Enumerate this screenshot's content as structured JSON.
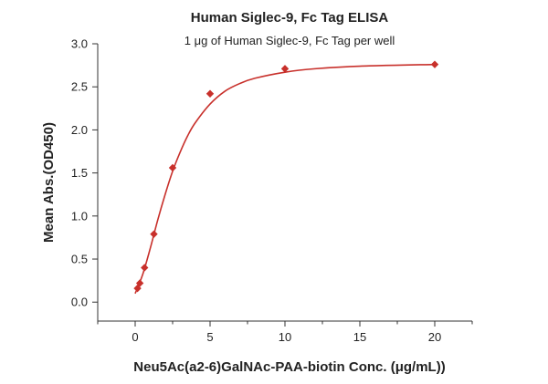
{
  "chart_data": {
    "type": "scatter",
    "title": "Human Siglec-9, Fc Tag ELISA",
    "subtitle": "1 μg of Human Siglec-9, Fc Tag per well",
    "xlabel": "Neu5Ac(a2-6)GalNAc-PAA-biotin Conc. (μg/mL))",
    "ylabel": "Mean Abs.(OD450)",
    "xlim": [
      -2.5,
      22.5
    ],
    "ylim": [
      -0.22,
      3.0
    ],
    "xticks": [
      "0",
      "5",
      "10",
      "15",
      "20"
    ],
    "xtick_values": [
      0,
      5,
      10,
      15,
      20
    ],
    "yticks": [
      "0.0",
      "0.5",
      "1.0",
      "1.5",
      "2.0",
      "2.5",
      "3.0"
    ],
    "ytick_values": [
      0.0,
      0.5,
      1.0,
      1.5,
      2.0,
      2.5,
      3.0
    ],
    "grid": false,
    "series": [
      {
        "marker": "diamond",
        "color": "#c8302b",
        "points": [
          {
            "x": 0.156,
            "y": 0.16
          },
          {
            "x": 0.3125,
            "y": 0.22
          },
          {
            "x": 0.625,
            "y": 0.4
          },
          {
            "x": 1.25,
            "y": 0.79
          },
          {
            "x": 2.5,
            "y": 1.56
          },
          {
            "x": 5,
            "y": 2.42
          },
          {
            "x": 10,
            "y": 2.71
          },
          {
            "x": 20,
            "y": 2.76
          }
        ]
      }
    ],
    "fit": {
      "type": "curve",
      "color": "#c8302b",
      "points": [
        {
          "x": 0,
          "y": 0.1
        },
        {
          "x": 0.5,
          "y": 0.32
        },
        {
          "x": 1,
          "y": 0.62
        },
        {
          "x": 1.5,
          "y": 0.95
        },
        {
          "x": 2,
          "y": 1.25
        },
        {
          "x": 2.5,
          "y": 1.52
        },
        {
          "x": 3,
          "y": 1.74
        },
        {
          "x": 3.5,
          "y": 1.93
        },
        {
          "x": 4,
          "y": 2.08
        },
        {
          "x": 5,
          "y": 2.3
        },
        {
          "x": 6,
          "y": 2.45
        },
        {
          "x": 7,
          "y": 2.54
        },
        {
          "x": 8,
          "y": 2.6
        },
        {
          "x": 10,
          "y": 2.67
        },
        {
          "x": 12,
          "y": 2.71
        },
        {
          "x": 15,
          "y": 2.74
        },
        {
          "x": 20,
          "y": 2.76
        }
      ]
    }
  }
}
